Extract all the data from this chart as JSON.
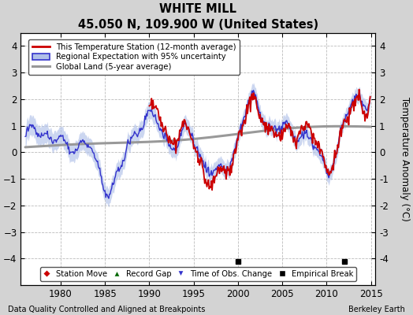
{
  "title": "WHITE MILL",
  "subtitle": "45.050 N, 109.900 W (United States)",
  "ylabel": "Temperature Anomaly (°C)",
  "xlabel_bottom_left": "Data Quality Controlled and Aligned at Breakpoints",
  "xlabel_bottom_right": "Berkeley Earth",
  "xlim": [
    1975.5,
    2015.5
  ],
  "ylim": [
    -5.0,
    4.5
  ],
  "yticks": [
    -4,
    -3,
    -2,
    -1,
    0,
    1,
    2,
    3,
    4
  ],
  "xticks": [
    1980,
    1985,
    1990,
    1995,
    2000,
    2005,
    2010,
    2015
  ],
  "background_color": "#d3d3d3",
  "plot_bg_color": "#ffffff",
  "grid_color": "#bbbbbb",
  "red_line_color": "#cc0000",
  "blue_line_color": "#3333cc",
  "blue_fill_color": "#b0c0e8",
  "gray_line_color": "#999999",
  "empirical_break_years": [
    2000,
    2012
  ],
  "empirical_break_y": -4.1,
  "legend_labels": [
    "This Temperature Station (12-month average)",
    "Regional Expectation with 95% uncertainty",
    "Global Land (5-year average)"
  ],
  "legend2_labels": [
    "Station Move",
    "Record Gap",
    "Time of Obs. Change",
    "Empirical Break"
  ]
}
